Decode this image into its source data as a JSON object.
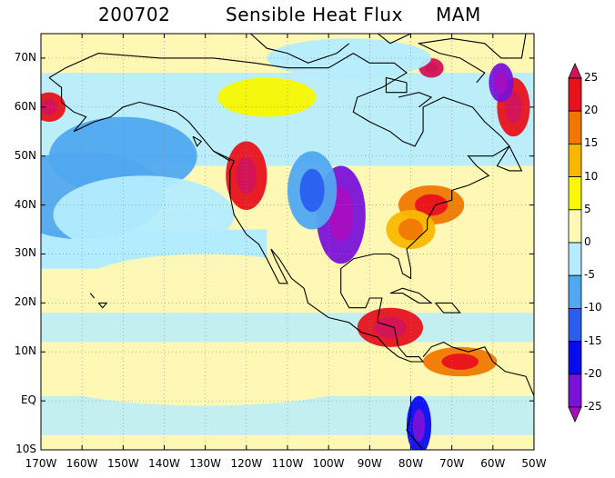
{
  "title": {
    "date": "200702",
    "variable": "Sensible Heat Flux",
    "season": "MAM"
  },
  "map": {
    "lon_range": [
      -170,
      -50
    ],
    "lat_range": [
      -10,
      75
    ],
    "lat_labels": [
      "70N",
      "60N",
      "50N",
      "40N",
      "30N",
      "20N",
      "10N",
      "EQ",
      "10S"
    ],
    "lat_values": [
      70,
      60,
      50,
      40,
      30,
      20,
      10,
      0,
      -10
    ],
    "lon_labels": [
      "170W",
      "160W",
      "150W",
      "140W",
      "130W",
      "120W",
      "110W",
      "100W",
      "90W",
      "80W",
      "70W",
      "60W",
      "50W"
    ],
    "lon_values": [
      -170,
      -160,
      -150,
      -140,
      -130,
      -120,
      -110,
      -100,
      -90,
      -80,
      -70,
      -60,
      -50
    ],
    "fields": [
      {
        "lon": -160,
        "lat": 42,
        "value": -8,
        "rx": 20,
        "ry": 9
      },
      {
        "lon": -150,
        "lat": 50,
        "value": -6,
        "rx": 18,
        "ry": 8
      },
      {
        "lon": -145,
        "lat": 38,
        "value": -5,
        "rx": 22,
        "ry": 8
      },
      {
        "lon": -120,
        "lat": 46,
        "value": 22,
        "rx": 5,
        "ry": 7
      },
      {
        "lon": -97,
        "lat": 38,
        "value": -22,
        "rx": 6,
        "ry": 10
      },
      {
        "lon": -104,
        "lat": 43,
        "value": -10,
        "rx": 6,
        "ry": 8
      },
      {
        "lon": -75,
        "lat": 40,
        "value": 15,
        "rx": 8,
        "ry": 4
      },
      {
        "lon": -80,
        "lat": 35,
        "value": 10,
        "rx": 6,
        "ry": 4
      },
      {
        "lon": -85,
        "lat": 15,
        "value": 24,
        "rx": 8,
        "ry": 4
      },
      {
        "lon": -68,
        "lat": 8,
        "value": 18,
        "rx": 9,
        "ry": 3
      },
      {
        "lon": -78,
        "lat": -5,
        "value": -20,
        "rx": 3,
        "ry": 6
      },
      {
        "lon": -55,
        "lat": 60,
        "value": 24,
        "rx": 4,
        "ry": 6
      },
      {
        "lon": -58,
        "lat": 65,
        "value": -22,
        "rx": 3,
        "ry": 4
      },
      {
        "lon": -168,
        "lat": 60,
        "value": 20,
        "rx": 4,
        "ry": 3
      },
      {
        "lon": -75,
        "lat": 68,
        "value": 25,
        "rx": 3,
        "ry": 2
      },
      {
        "lon": -115,
        "lat": 62,
        "value": 6,
        "rx": 12,
        "ry": 4
      },
      {
        "lon": -95,
        "lat": 70,
        "value": -4,
        "rx": 20,
        "ry": 4
      },
      {
        "lon": -130,
        "lat": 24,
        "value": 3,
        "rx": 30,
        "ry": 6
      },
      {
        "lon": -130,
        "lat": 5,
        "value": 2,
        "rx": 40,
        "ry": 6
      }
    ]
  },
  "colorbar": {
    "labels": [
      "25",
      "20",
      "15",
      "10",
      "5",
      "0",
      "-5",
      "-10",
      "-15",
      "-20",
      "-25"
    ],
    "colors": [
      "#d2145a",
      "#e8121c",
      "#f07800",
      "#f8b800",
      "#f8f800",
      "#fff8b4",
      "#b4ecff",
      "#50a8f0",
      "#2a5ef0",
      "#0a0af0",
      "#7a12d8",
      "#a60ec0"
    ]
  },
  "colors": {
    "background": "#fff8b4",
    "coast": "#000000",
    "ocean_neg": "#b4ecff"
  }
}
